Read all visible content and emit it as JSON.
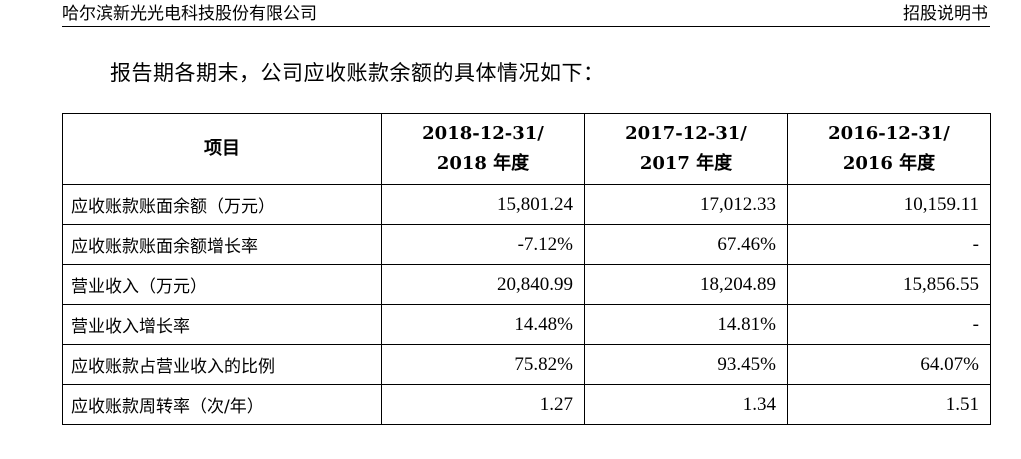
{
  "header": {
    "company": "哈尔滨新光光电科技股份有限公司",
    "doc_type": "招股说明书"
  },
  "intro": "报告期各期末，公司应收账款余额的具体情况如下：",
  "table": {
    "item_header": "项目",
    "columns": [
      {
        "line1": "2018-12-31/",
        "line2": "2018 年度"
      },
      {
        "line1": "2017-12-31/",
        "line2": "2017 年度"
      },
      {
        "line1": "2016-12-31/",
        "line2": "2016 年度"
      }
    ],
    "rows": [
      {
        "label": "应收账款账面余额（万元）",
        "values": [
          "15,801.24",
          "17,012.33",
          "10,159.11"
        ]
      },
      {
        "label": "应收账款账面余额增长率",
        "values": [
          "-7.12%",
          "67.46%",
          "-"
        ]
      },
      {
        "label": "营业收入（万元）",
        "values": [
          "20,840.99",
          "18,204.89",
          "15,856.55"
        ]
      },
      {
        "label": "营业收入增长率",
        "values": [
          "14.48%",
          "14.81%",
          "-"
        ]
      },
      {
        "label": "应收账款占营业收入的比例",
        "values": [
          "75.82%",
          "93.45%",
          "64.07%"
        ]
      },
      {
        "label": "应收账款周转率（次/年）",
        "values": [
          "1.27",
          "1.34",
          "1.51"
        ]
      }
    ]
  }
}
